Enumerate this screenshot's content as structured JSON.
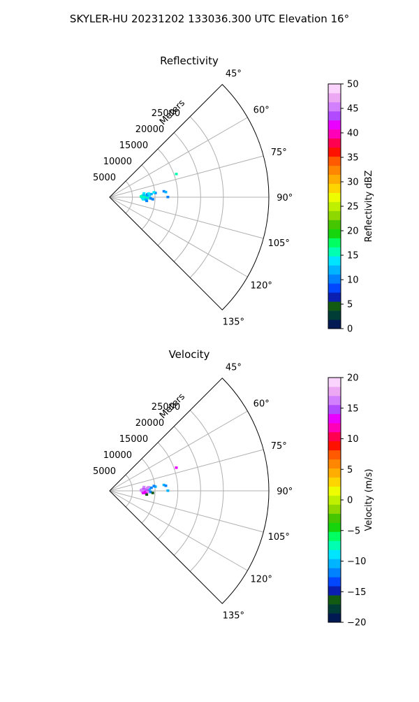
{
  "figure": {
    "title": "SKYLER-HU  20231202  133036.300 UTC Elevation 16°"
  },
  "chart_data": [
    {
      "type": "heatmap",
      "projection": "polar-sector",
      "title": "Reflectivity",
      "radial_axis_label": "Meters",
      "radial_ticks": [
        5000,
        10000,
        15000,
        20000,
        25000
      ],
      "radial_tick_labels": [
        "5000",
        "10000",
        "15000",
        "20000",
        "25000"
      ],
      "rlim": [
        0,
        35000
      ],
      "angle_range_deg": [
        45,
        135
      ],
      "angle_ticks": [
        45,
        60,
        75,
        90,
        105,
        120,
        135
      ],
      "angle_tick_labels": [
        "45°",
        "60°",
        "75°",
        "90°",
        "105°",
        "120°",
        "135°"
      ],
      "grid": true,
      "colorbar": {
        "label": "Reflectivity dBZ",
        "range": [
          0,
          50
        ],
        "ticks": [
          0,
          5,
          10,
          15,
          20,
          25,
          30,
          35,
          40,
          45,
          50
        ],
        "tick_labels": [
          "0",
          "5",
          "10",
          "15",
          "20",
          "25",
          "30",
          "35",
          "40",
          "45",
          "50"
        ],
        "colors": [
          "#021a54",
          "#003d36",
          "#135b13",
          "#0a1fb2",
          "#0047ff",
          "#0082ff",
          "#00b4ff",
          "#00e5ff",
          "#00ffb0",
          "#00ff61",
          "#16d50d",
          "#45c600",
          "#8ed800",
          "#bff000",
          "#eefd00",
          "#ffd500",
          "#ffad00",
          "#ff8600",
          "#ff5a00",
          "#ff1100",
          "#ff0050",
          "#ff00b8",
          "#ea00ff",
          "#b24aff",
          "#d380ff",
          "#eca8f2",
          "#fad4fc"
        ]
      },
      "cells": [
        {
          "r": 7000,
          "az": 90,
          "v": 15
        },
        {
          "r": 7500,
          "az": 90,
          "v": 14
        },
        {
          "r": 8000,
          "az": 90,
          "v": 15
        },
        {
          "r": 8500,
          "az": 90,
          "v": 13
        },
        {
          "r": 7200,
          "az": 88,
          "v": 15
        },
        {
          "r": 7800,
          "az": 88,
          "v": 16
        },
        {
          "r": 8200,
          "az": 88,
          "v": 12
        },
        {
          "r": 8800,
          "az": 88,
          "v": 14
        },
        {
          "r": 7200,
          "az": 92,
          "v": 14
        },
        {
          "r": 7800,
          "az": 92,
          "v": 15
        },
        {
          "r": 8300,
          "az": 92,
          "v": 16
        },
        {
          "r": 9000,
          "az": 92,
          "v": 11
        },
        {
          "r": 7500,
          "az": 86,
          "v": 12
        },
        {
          "r": 8300,
          "az": 86,
          "v": 10
        },
        {
          "r": 7400,
          "az": 94,
          "v": 13
        },
        {
          "r": 8000,
          "az": 94,
          "v": 12
        },
        {
          "r": 9500,
          "az": 93,
          "v": 11
        },
        {
          "r": 7600,
          "az": 84,
          "v": 13
        },
        {
          "r": 8600,
          "az": 85,
          "v": 14
        },
        {
          "r": 9200,
          "az": 86,
          "v": 12
        },
        {
          "r": 10100,
          "az": 85,
          "v": 11
        },
        {
          "r": 8200,
          "az": 96,
          "v": 10
        },
        {
          "r": 9800,
          "az": 84,
          "v": 13
        },
        {
          "r": 6900,
          "az": 89,
          "v": 16
        },
        {
          "r": 12000,
          "az": 84,
          "v": 11
        },
        {
          "r": 12400,
          "az": 85,
          "v": 12
        },
        {
          "r": 12800,
          "az": 90,
          "v": 10
        },
        {
          "r": 15500,
          "az": 71,
          "v": 16
        }
      ]
    },
    {
      "type": "heatmap",
      "projection": "polar-sector",
      "title": "Velocity",
      "radial_axis_label": "Meters",
      "radial_ticks": [
        5000,
        10000,
        15000,
        20000,
        25000
      ],
      "radial_tick_labels": [
        "5000",
        "10000",
        "15000",
        "20000",
        "25000"
      ],
      "rlim": [
        0,
        35000
      ],
      "angle_range_deg": [
        45,
        135
      ],
      "angle_ticks": [
        45,
        60,
        75,
        90,
        105,
        120,
        135
      ],
      "angle_tick_labels": [
        "45°",
        "60°",
        "75°",
        "90°",
        "105°",
        "120°",
        "135°"
      ],
      "grid": true,
      "colorbar": {
        "label": "Velocity (m/s)",
        "range": [
          -20,
          20
        ],
        "ticks": [
          -20,
          -15,
          -10,
          -5,
          0,
          5,
          10,
          15,
          20
        ],
        "tick_labels": [
          "−20",
          "−15",
          "−10",
          "−5",
          "0",
          "5",
          "10",
          "15",
          "20"
        ],
        "colors": [
          "#021a54",
          "#003d36",
          "#135b13",
          "#0a1fb2",
          "#0047ff",
          "#0082ff",
          "#00b4ff",
          "#00e5ff",
          "#00ffb0",
          "#00ff61",
          "#16d50d",
          "#45c600",
          "#8ed800",
          "#bff000",
          "#eefd00",
          "#ffd500",
          "#ffad00",
          "#ff8600",
          "#ff5a00",
          "#ff1100",
          "#ff0050",
          "#ff00b8",
          "#ea00ff",
          "#b24aff",
          "#d380ff",
          "#eca8f2",
          "#fad4fc"
        ]
      },
      "cells": [
        {
          "r": 7000,
          "az": 90,
          "v": 16
        },
        {
          "r": 7500,
          "az": 90,
          "v": 17
        },
        {
          "r": 8000,
          "az": 90,
          "v": 15
        },
        {
          "r": 8500,
          "az": 90,
          "v": 13
        },
        {
          "r": 7200,
          "az": 88,
          "v": 16
        },
        {
          "r": 7800,
          "az": 88,
          "v": 17
        },
        {
          "r": 8200,
          "az": 88,
          "v": 15
        },
        {
          "r": 8800,
          "az": 88,
          "v": -11
        },
        {
          "r": 7200,
          "az": 92,
          "v": 16
        },
        {
          "r": 7800,
          "az": 92,
          "v": 14
        },
        {
          "r": 8300,
          "az": 92,
          "v": 17
        },
        {
          "r": 9000,
          "az": 92,
          "v": -12
        },
        {
          "r": 7500,
          "az": 86,
          "v": 15
        },
        {
          "r": 8300,
          "az": 86,
          "v": 16
        },
        {
          "r": 7400,
          "az": 94,
          "v": 14
        },
        {
          "r": 8000,
          "az": 94,
          "v": 13
        },
        {
          "r": 9500,
          "az": 93,
          "v": -16
        },
        {
          "r": 7600,
          "az": 84,
          "v": 16
        },
        {
          "r": 8600,
          "az": 85,
          "v": 17
        },
        {
          "r": 9200,
          "az": 86,
          "v": -12
        },
        {
          "r": 10100,
          "az": 85,
          "v": -11
        },
        {
          "r": 8200,
          "az": 96,
          "v": -17
        },
        {
          "r": 9800,
          "az": 84,
          "v": -12
        },
        {
          "r": 6900,
          "az": 89,
          "v": 16
        },
        {
          "r": 12000,
          "az": 84,
          "v": -11
        },
        {
          "r": 12400,
          "az": 85,
          "v": -12
        },
        {
          "r": 12800,
          "az": 90,
          "v": -10
        },
        {
          "r": 15500,
          "az": 71,
          "v": 13
        }
      ]
    }
  ]
}
